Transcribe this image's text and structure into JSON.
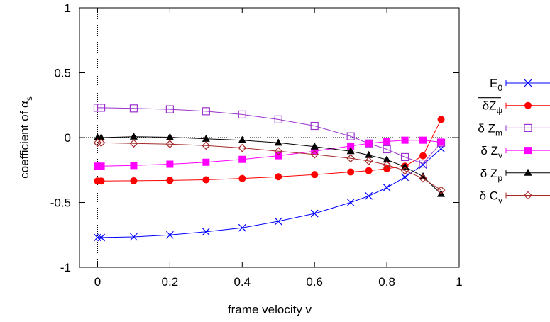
{
  "chart_data": {
    "type": "line",
    "title": "",
    "xlabel": "frame velocity v",
    "ylabel": "coefficient of α",
    "ylabel_sub": "s",
    "xlim": [
      -0.05,
      1.0
    ],
    "ylim": [
      -1.0,
      1.0
    ],
    "x_ticks": [
      0,
      0.2,
      0.4,
      0.6,
      0.8,
      1
    ],
    "x_tick_labels": [
      "0",
      "0.2",
      "0.4",
      "0.6",
      "0.8",
      "1"
    ],
    "y_ticks": [
      -1,
      -0.5,
      0,
      0.5,
      1
    ],
    "y_tick_labels": [
      "-1",
      "-0.5",
      "0",
      "0.5",
      "1"
    ],
    "grid": false,
    "reference_lines": {
      "x": 0,
      "y": 0,
      "style": "dotted"
    },
    "legend_placement": "outside-right",
    "series": [
      {
        "name": "E",
        "sub": "0",
        "overline": false,
        "color": "#0000ff",
        "marker": "x",
        "x": [
          0,
          0.01,
          0.1,
          0.2,
          0.3,
          0.4,
          0.5,
          0.6,
          0.7,
          0.75,
          0.8,
          0.85,
          0.9,
          0.95
        ],
        "y": [
          -0.77,
          -0.77,
          -0.765,
          -0.75,
          -0.725,
          -0.695,
          -0.645,
          -0.585,
          -0.5,
          -0.45,
          -0.385,
          -0.305,
          -0.21,
          -0.085
        ]
      },
      {
        "name": "δZ",
        "sub": "ψ",
        "overline": true,
        "color": "#ff0000",
        "marker": "filled-circle",
        "x": [
          0,
          0.01,
          0.1,
          0.2,
          0.3,
          0.4,
          0.5,
          0.6,
          0.7,
          0.75,
          0.8,
          0.85,
          0.9,
          0.95
        ],
        "y": [
          -0.335,
          -0.335,
          -0.333,
          -0.33,
          -0.325,
          -0.315,
          -0.302,
          -0.285,
          -0.265,
          -0.255,
          -0.24,
          -0.22,
          -0.14,
          0.14
        ]
      },
      {
        "name": "δ Z",
        "sub": "m",
        "overline": false,
        "color": "#9932cc",
        "marker": "open-square",
        "x": [
          0,
          0.01,
          0.1,
          0.2,
          0.3,
          0.4,
          0.5,
          0.6,
          0.7,
          0.75,
          0.8,
          0.85,
          0.9,
          0.95
        ],
        "y": [
          0.23,
          0.23,
          0.225,
          0.218,
          0.203,
          0.178,
          0.14,
          0.09,
          0.01,
          -0.045,
          -0.09,
          -0.15,
          -0.2,
          -0.04
        ]
      },
      {
        "name": "δ Z",
        "sub": "v",
        "overline": false,
        "color": "#ff00ff",
        "marker": "filled-square",
        "x": [
          0,
          0.01,
          0.1,
          0.2,
          0.3,
          0.4,
          0.5,
          0.6,
          0.7,
          0.75,
          0.8,
          0.85,
          0.9,
          0.95
        ],
        "y": [
          -0.22,
          -0.22,
          -0.215,
          -0.205,
          -0.19,
          -0.168,
          -0.14,
          -0.105,
          -0.065,
          -0.045,
          -0.03,
          -0.02,
          -0.02,
          -0.035
        ]
      },
      {
        "name": "δ Z",
        "sub": "p",
        "overline": false,
        "color": "#000000",
        "marker": "filled-triangle",
        "x": [
          0,
          0.01,
          0.1,
          0.2,
          0.3,
          0.4,
          0.5,
          0.6,
          0.7,
          0.75,
          0.8,
          0.85,
          0.9,
          0.95
        ],
        "y": [
          0.0,
          0.0,
          0.007,
          0.003,
          -0.01,
          -0.02,
          -0.04,
          -0.07,
          -0.105,
          -0.135,
          -0.17,
          -0.225,
          -0.3,
          -0.435
        ]
      },
      {
        "name": "δ C",
        "sub": "v",
        "overline": false,
        "color": "#a52a2a",
        "marker": "open-diamond",
        "x": [
          0,
          0.01,
          0.1,
          0.2,
          0.3,
          0.4,
          0.5,
          0.6,
          0.7,
          0.75,
          0.8,
          0.85,
          0.9,
          0.95
        ],
        "y": [
          -0.04,
          -0.04,
          -0.045,
          -0.05,
          -0.062,
          -0.08,
          -0.105,
          -0.13,
          -0.16,
          -0.18,
          -0.21,
          -0.255,
          -0.315,
          -0.405
        ]
      }
    ]
  }
}
